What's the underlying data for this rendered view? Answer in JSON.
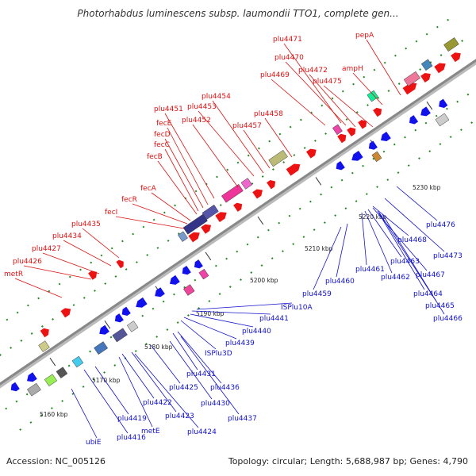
{
  "title": "Photorhabdus luminescens subsp. laumondii TTO1, complete gen...",
  "footer": {
    "accession": "Accession: NC_005126",
    "summary": "Topology: circular; Length: 5,688,987 bp; Genes: 4,790"
  },
  "colors": {
    "backbone": "#888888",
    "upper_label": "#dd1111",
    "lower_label": "#1111cc",
    "upper_arrow": "#ee1111",
    "lower_arrow": "#1111ee",
    "tick": "#228822"
  },
  "ticks": [
    "5160 kbp",
    "5170 kbp",
    "5180 kbp",
    "5190 kbp",
    "5200 kbp",
    "5210 kbp",
    "5220 kbp",
    "5230 kbp"
  ],
  "upper_labels": [
    "pepA",
    "plu4471",
    "plu4470",
    "plu4472",
    "plu4469",
    "plu4475",
    "ampH",
    "plu4454",
    "plu4451",
    "plu4453",
    "plu4452",
    "plu4458",
    "plu4457",
    "fecE",
    "fecD",
    "fecC",
    "fecB",
    "fecA",
    "fecR",
    "fecI",
    "plu4435",
    "plu4434",
    "plu4427",
    "plu4426",
    "metR"
  ],
  "lower_labels": [
    "plu4476",
    "plu4473",
    "plu4468",
    "plu4467",
    "plu4463",
    "plu4462",
    "plu4461",
    "plu4460",
    "plu4459",
    "plu4464",
    "plu4465",
    "plu4466",
    "ISPlu10A",
    "plu4441",
    "plu4440",
    "plu4439",
    "ISPlu3D",
    "plu4431",
    "plu4436",
    "plu4425",
    "plu4430",
    "plu4437",
    "plu4422",
    "plu4423",
    "plu4424",
    "plu4419",
    "plu4416",
    "metE",
    "ubiE"
  ]
}
